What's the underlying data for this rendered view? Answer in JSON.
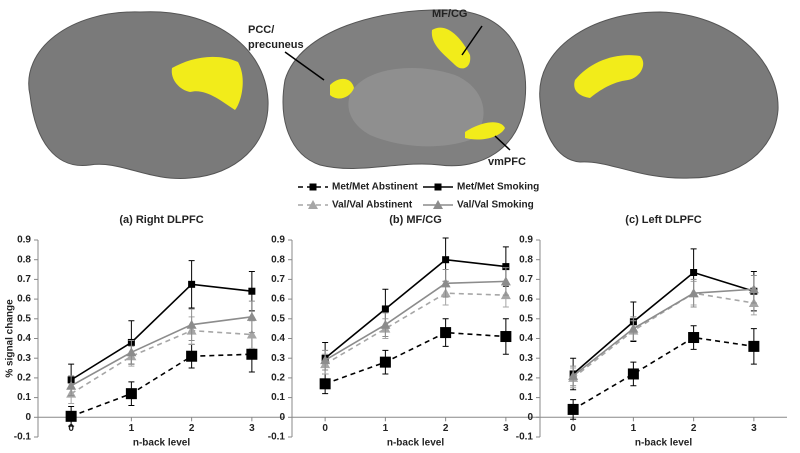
{
  "brain_labels": [
    [
      "PCC/",
      "precuneus"
    ],
    [
      "MF/CG"
    ],
    [
      "vmPFC"
    ]
  ],
  "chart_data": [
    {
      "type": "line",
      "title": "(a) Right DLPFC",
      "xlabel": "n-back level",
      "ylabel": "% signal change",
      "x": [
        0,
        1,
        2,
        3
      ],
      "xlim": [
        -0.55,
        3.55
      ],
      "xticks": [
        0,
        1,
        2,
        3
      ],
      "ylim": [
        -0.1,
        0.9
      ],
      "yticks": [
        -0.1,
        0,
        0.1,
        0.2,
        0.3,
        0.4,
        0.5,
        0.6,
        0.7,
        0.8,
        0.9
      ],
      "series": [
        {
          "name": "Met/Met Abstinent",
          "color": "#000000",
          "dash": true,
          "marker": "big-square",
          "values": [
            0.005,
            0.12,
            0.31,
            0.32
          ],
          "errors": [
            0.05,
            0.06,
            0.06,
            0.09
          ]
        },
        {
          "name": "Met/Met Smoking",
          "color": "#000000",
          "dash": false,
          "marker": "square",
          "values": [
            0.19,
            0.38,
            0.675,
            0.64
          ],
          "errors": [
            0.08,
            0.11,
            0.12,
            0.1
          ]
        },
        {
          "name": "Val/Val Abstinent",
          "color": "#a6a6a6",
          "dash": true,
          "marker": "triangle",
          "values": [
            0.12,
            0.31,
            0.44,
            0.42
          ],
          "errors": [
            0.05,
            0.05,
            0.07,
            0.07
          ]
        },
        {
          "name": "Val/Val Smoking",
          "color": "#8c8c8c",
          "dash": false,
          "marker": "triangle",
          "values": [
            0.16,
            0.33,
            0.47,
            0.51
          ],
          "errors": [
            0.05,
            0.06,
            0.08,
            0.08
          ]
        }
      ]
    },
    {
      "type": "line",
      "title": "(b) MF/CG",
      "xlabel": "n-back level",
      "x": [
        0,
        1,
        2,
        3
      ],
      "xlim": [
        -0.55,
        3.55
      ],
      "xticks": [
        0,
        1,
        2,
        3
      ],
      "ylim": [
        -0.1,
        0.9
      ],
      "yticks": [
        -0.1,
        0,
        0.1,
        0.2,
        0.3,
        0.4,
        0.5,
        0.6,
        0.7,
        0.8,
        0.9
      ],
      "series": [
        {
          "color": "#000000",
          "dash": true,
          "marker": "big-square",
          "values": [
            0.17,
            0.28,
            0.43,
            0.41
          ],
          "errors": [
            0.05,
            0.06,
            0.07,
            0.09
          ]
        },
        {
          "color": "#000000",
          "dash": false,
          "marker": "square",
          "values": [
            0.3,
            0.55,
            0.8,
            0.765
          ],
          "errors": [
            0.08,
            0.1,
            0.11,
            0.1
          ]
        },
        {
          "color": "#a6a6a6",
          "dash": true,
          "marker": "triangle",
          "values": [
            0.27,
            0.45,
            0.63,
            0.62
          ],
          "errors": [
            0.05,
            0.05,
            0.06,
            0.06
          ]
        },
        {
          "color": "#8c8c8c",
          "dash": false,
          "marker": "triangle",
          "values": [
            0.29,
            0.47,
            0.68,
            0.69
          ],
          "errors": [
            0.05,
            0.06,
            0.07,
            0.07
          ]
        }
      ]
    },
    {
      "type": "line",
      "title": "(c) Left DLPFC",
      "xlabel": "n-back level",
      "x": [
        0,
        1,
        2,
        3
      ],
      "xlim": [
        -0.55,
        3.55
      ],
      "xticks": [
        0,
        1,
        2,
        3
      ],
      "ylim": [
        -0.1,
        0.9
      ],
      "yticks": [
        -0.1,
        0,
        0.1,
        0.2,
        0.3,
        0.4,
        0.5,
        0.6,
        0.7,
        0.8,
        0.9
      ],
      "series": [
        {
          "color": "#000000",
          "dash": true,
          "marker": "big-square",
          "values": [
            0.04,
            0.22,
            0.405,
            0.36
          ],
          "errors": [
            0.05,
            0.06,
            0.06,
            0.09
          ]
        },
        {
          "color": "#000000",
          "dash": false,
          "marker": "square",
          "values": [
            0.22,
            0.485,
            0.735,
            0.64
          ],
          "errors": [
            0.08,
            0.1,
            0.12,
            0.1
          ]
        },
        {
          "color": "#a6a6a6",
          "dash": true,
          "marker": "triangle",
          "values": [
            0.2,
            0.44,
            0.63,
            0.58
          ],
          "errors": [
            0.05,
            0.05,
            0.06,
            0.06
          ]
        },
        {
          "color": "#8c8c8c",
          "dash": false,
          "marker": "triangle",
          "values": [
            0.21,
            0.45,
            0.63,
            0.65
          ],
          "errors": [
            0.05,
            0.06,
            0.07,
            0.07
          ]
        }
      ]
    }
  ]
}
